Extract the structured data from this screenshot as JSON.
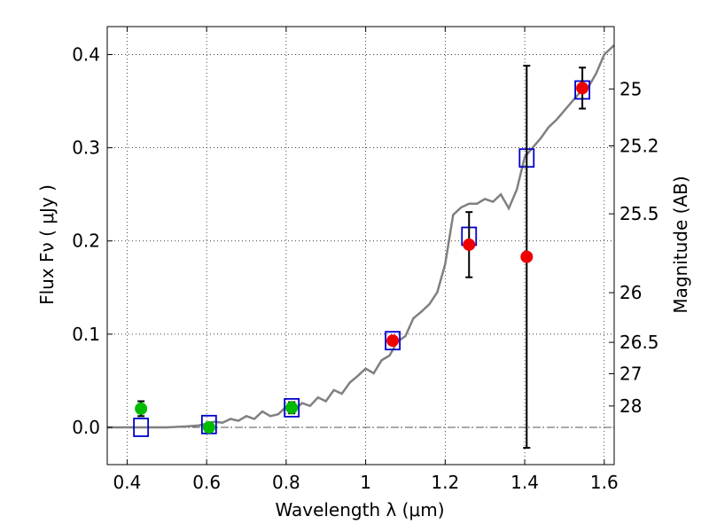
{
  "chart_data": {
    "type": "scatter",
    "xlabel": "Wavelength  λ (μm)",
    "ylabel": "Flux  Fν ( μJy )",
    "y2label": "Magnitude (AB)",
    "xlim": [
      0.35,
      1.625
    ],
    "ylim": [
      -0.04,
      0.43
    ],
    "grid": true,
    "x_ticks": [
      {
        "value": 0.4,
        "label": "0.4"
      },
      {
        "value": 0.6,
        "label": "0.6"
      },
      {
        "value": 0.8,
        "label": "0.8"
      },
      {
        "value": 1.0,
        "label": "1"
      },
      {
        "value": 1.2,
        "label": "1.2"
      },
      {
        "value": 1.4,
        "label": "1.4"
      },
      {
        "value": 1.6,
        "label": "1.6"
      }
    ],
    "y_ticks": [
      {
        "value": 0.0,
        "label": "0.0"
      },
      {
        "value": 0.1,
        "label": "0.1"
      },
      {
        "value": 0.2,
        "label": "0.2"
      },
      {
        "value": 0.3,
        "label": "0.3"
      },
      {
        "value": 0.4,
        "label": "0.4"
      }
    ],
    "y2_ticks": [
      {
        "flux": 0.3631,
        "label": "25"
      },
      {
        "flux": 0.302,
        "label": "25.2"
      },
      {
        "flux": 0.2291,
        "label": "25.5"
      },
      {
        "flux": 0.1445,
        "label": "26"
      },
      {
        "flux": 0.0912,
        "label": "26.5"
      },
      {
        "flux": 0.0575,
        "label": "27"
      },
      {
        "flux": 0.0229,
        "label": "28"
      }
    ],
    "series": [
      {
        "kind": "model-spectrum",
        "color": "#808080",
        "x": [
          0.35,
          0.4,
          0.45,
          0.5,
          0.55,
          0.58,
          0.6,
          0.62,
          0.64,
          0.66,
          0.68,
          0.7,
          0.72,
          0.74,
          0.76,
          0.78,
          0.8,
          0.82,
          0.84,
          0.86,
          0.88,
          0.9,
          0.92,
          0.94,
          0.96,
          0.98,
          1.0,
          1.02,
          1.04,
          1.06,
          1.08,
          1.1,
          1.12,
          1.14,
          1.16,
          1.18,
          1.2,
          1.22,
          1.24,
          1.26,
          1.28,
          1.3,
          1.32,
          1.34,
          1.36,
          1.38,
          1.4,
          1.42,
          1.44,
          1.46,
          1.48,
          1.5,
          1.52,
          1.54,
          1.56,
          1.58,
          1.6,
          1.625
        ],
        "y": [
          0.0,
          0.0,
          0.0,
          0.0,
          0.001,
          0.002,
          0.004,
          0.006,
          0.005,
          0.009,
          0.007,
          0.012,
          0.009,
          0.017,
          0.012,
          0.014,
          0.022,
          0.018,
          0.026,
          0.023,
          0.032,
          0.028,
          0.04,
          0.036,
          0.048,
          0.055,
          0.063,
          0.058,
          0.072,
          0.077,
          0.092,
          0.098,
          0.117,
          0.124,
          0.132,
          0.145,
          0.175,
          0.228,
          0.236,
          0.24,
          0.24,
          0.245,
          0.242,
          0.25,
          0.235,
          0.255,
          0.29,
          0.3,
          0.31,
          0.322,
          0.33,
          0.34,
          0.35,
          0.36,
          0.365,
          0.38,
          0.4,
          0.41
        ]
      },
      {
        "kind": "model-photometry",
        "marker": "open-square",
        "color": "#0000cc",
        "x": [
          0.435,
          0.606,
          0.814,
          1.068,
          1.26,
          1.405,
          1.545
        ],
        "y": [
          0.0,
          0.003,
          0.021,
          0.093,
          0.205,
          0.289,
          0.362
        ]
      },
      {
        "kind": "observed-photometry",
        "marker": "filled-circle",
        "color": "#00bb00",
        "x": [
          0.435,
          0.606,
          0.814
        ],
        "y": [
          0.02,
          0.0,
          0.021
        ],
        "err": [
          0.008,
          0.005,
          0.006
        ]
      },
      {
        "kind": "observed-photometry",
        "marker": "filled-circle",
        "color": "#ee0000",
        "x": [
          1.068,
          1.26,
          1.405,
          1.545
        ],
        "y": [
          0.093,
          0.196,
          0.183,
          0.364
        ],
        "err": [
          null,
          0.035,
          0.205,
          0.022
        ]
      }
    ]
  }
}
